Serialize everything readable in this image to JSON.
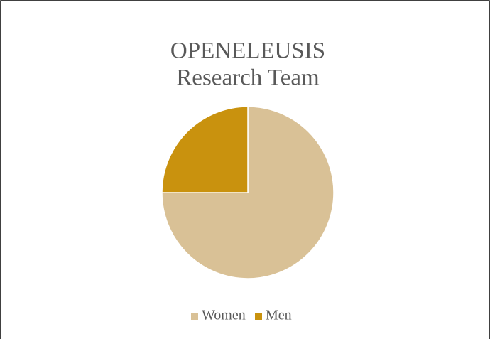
{
  "chart_data": {
    "type": "pie",
    "title": [
      "OPENELEUSIS",
      "Research Team"
    ],
    "categories": [
      "Women",
      "Men"
    ],
    "values": [
      75,
      25
    ],
    "colors": [
      "#d9c196",
      "#c9920e"
    ],
    "legend": "bottom"
  }
}
